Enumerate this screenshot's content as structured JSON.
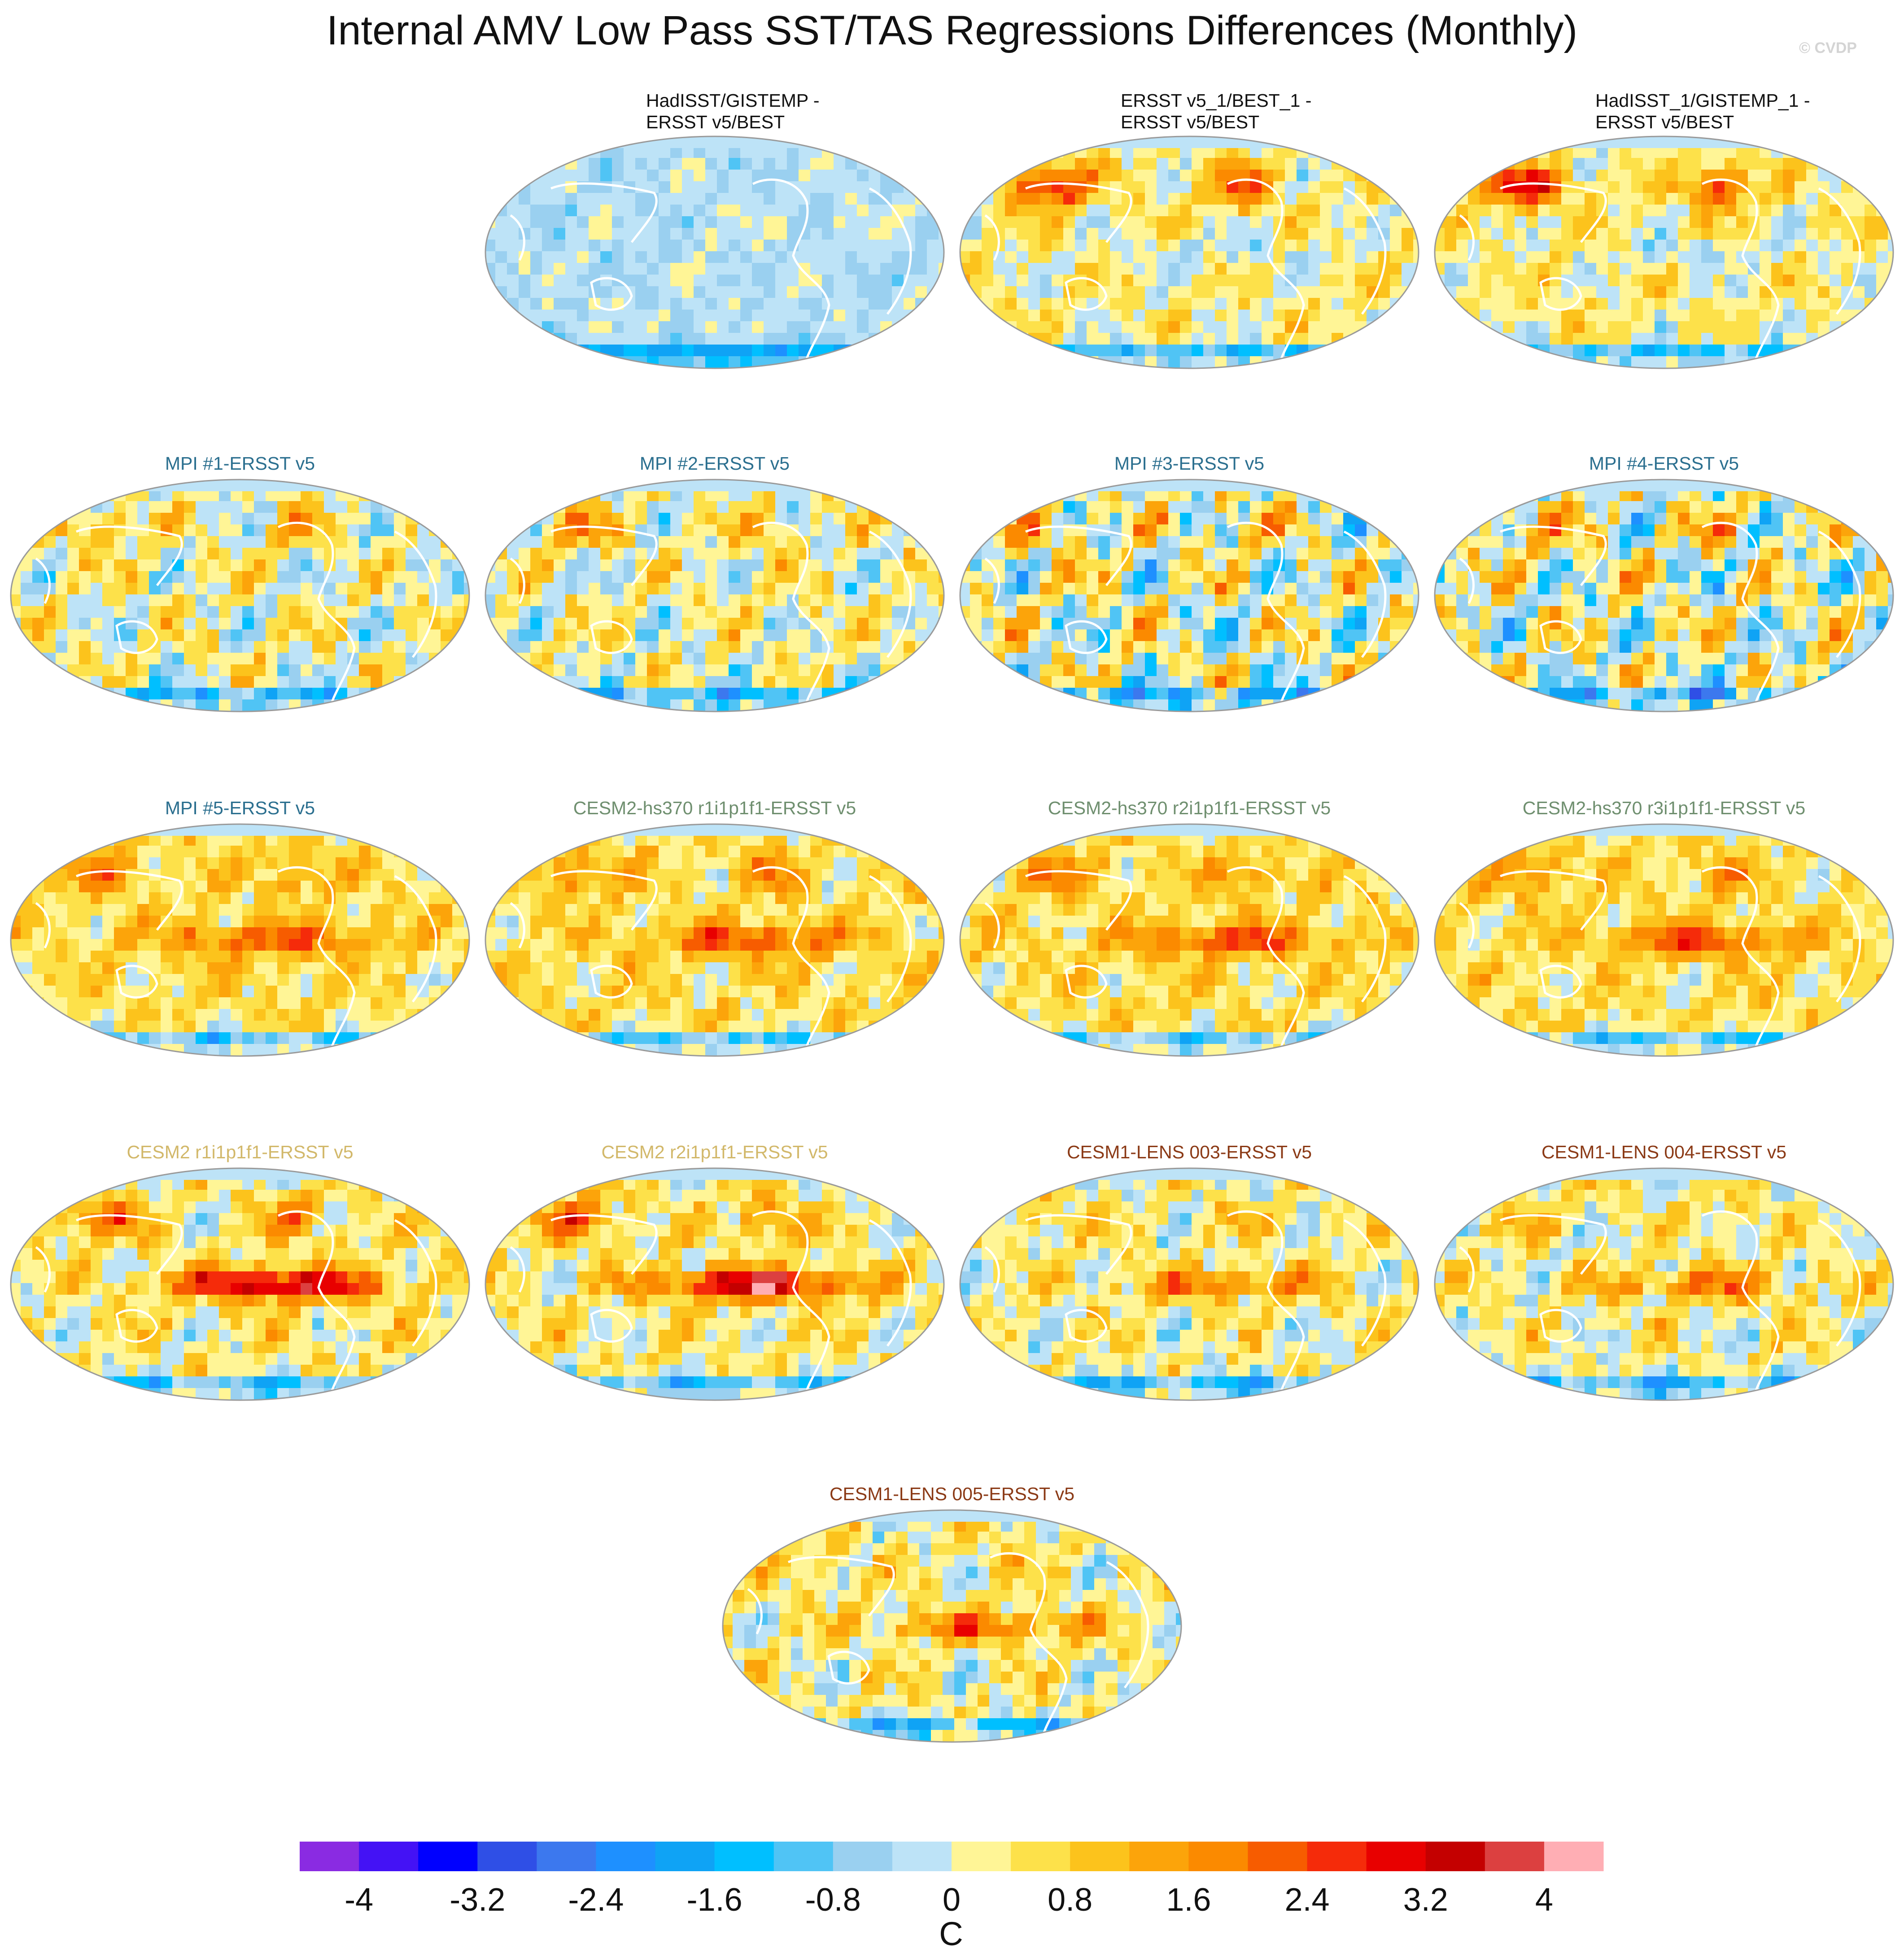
{
  "title": "Internal AMV Low Pass SST/TAS Regressions Differences (Monthly)",
  "watermark": "© CVDP",
  "panels": [
    {
      "title": "HadISST/GISTEMP -\nERSST v5/BEST",
      "color": "#111111",
      "style": "obs",
      "pattern": "weak"
    },
    {
      "title": "ERSST v5_1/BEST_1 -\nERSST v5/BEST",
      "color": "#111111",
      "style": "obs",
      "pattern": "warm-north"
    },
    {
      "title": "HadISST_1/GISTEMP_1 -\nERSST v5/BEST",
      "color": "#111111",
      "style": "obs",
      "pattern": "warm-north"
    },
    {
      "title": "MPI #1-ERSST v5",
      "color": "#2b6f8f",
      "pattern": "mixed"
    },
    {
      "title": "MPI #2-ERSST v5",
      "color": "#2b6f8f",
      "pattern": "mixed"
    },
    {
      "title": "MPI #3-ERSST v5",
      "color": "#2b6f8f",
      "pattern": "strong-mixed"
    },
    {
      "title": "MPI #4-ERSST v5",
      "color": "#2b6f8f",
      "pattern": "strong-mixed"
    },
    {
      "title": "MPI #5-ERSST v5",
      "color": "#2b6f8f",
      "pattern": "enso-warm"
    },
    {
      "title": "CESM2-hs370 r1i1p1f1-ERSST v5",
      "color": "#6f8f6f",
      "pattern": "enso-warm"
    },
    {
      "title": "CESM2-hs370 r2i1p1f1-ERSST v5",
      "color": "#6f8f6f",
      "pattern": "enso-warm"
    },
    {
      "title": "CESM2-hs370 r3i1p1f1-ERSST v5",
      "color": "#6f8f6f",
      "pattern": "enso-warm"
    },
    {
      "title": "CESM2 r1i1p1f1-ERSST v5",
      "color": "#d2b86a",
      "pattern": "enso-strong"
    },
    {
      "title": "CESM2 r2i1p1f1-ERSST v5",
      "color": "#d2b86a",
      "pattern": "enso-strong"
    },
    {
      "title": "CESM1-LENS 003-ERSST v5",
      "color": "#8b3a16",
      "pattern": "enso-cool"
    },
    {
      "title": "CESM1-LENS 004-ERSST v5",
      "color": "#8b3a16",
      "pattern": "enso-cool"
    },
    {
      "title": "CESM1-LENS 005-ERSST v5",
      "color": "#8b3a16",
      "pattern": "enso-cool"
    }
  ],
  "chart_data": {
    "type": "heatmap",
    "projection": "robinson",
    "colorbar": {
      "unit": "C",
      "levels": [
        -4.4,
        -4,
        -3.6,
        -3.2,
        -2.8,
        -2.4,
        -2,
        -1.6,
        -1.2,
        -0.8,
        -0.4,
        0,
        0.4,
        0.8,
        1.2,
        1.6,
        2,
        2.4,
        2.8,
        3.2,
        3.6,
        4,
        4.4
      ],
      "colors": [
        "#8a2be2",
        "#4412f5",
        "#0000ff",
        "#2f4fe6",
        "#3c78ee",
        "#1e90ff",
        "#0fa3f5",
        "#00bfff",
        "#50c4f5",
        "#9ad0f0",
        "#bde3f7",
        "#fff596",
        "#fde14a",
        "#fcc31c",
        "#fca40a",
        "#fb8a00",
        "#f75c00",
        "#f52b0a",
        "#e80000",
        "#c40000",
        "#dc4040",
        "#ffaeb4"
      ],
      "tick_labels": [
        "-4",
        "-3.2",
        "-2.4",
        "-1.6",
        "-0.8",
        "0",
        "0.8",
        "1.6",
        "2.4",
        "3.2",
        "4"
      ],
      "tick_values": [
        -4,
        -3.2,
        -2.4,
        -1.6,
        -0.8,
        0,
        0.8,
        1.6,
        2.4,
        3.2,
        4
      ]
    }
  }
}
